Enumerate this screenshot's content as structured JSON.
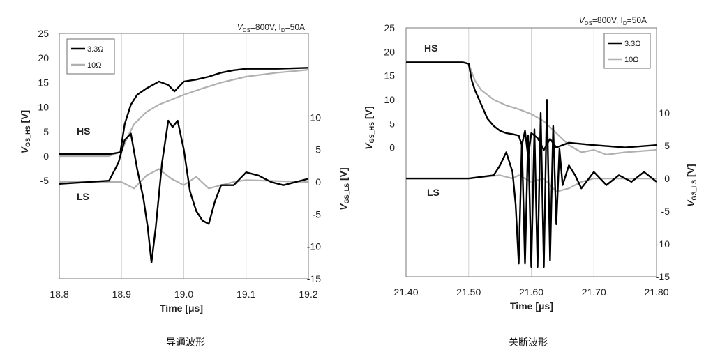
{
  "chart_data": [
    {
      "type": "line",
      "caption": "导通波形",
      "condition": {
        "v_sub": "DS",
        "v_val": "=800V,",
        "i_sub": "D",
        "i_val": "=50A"
      },
      "xlabel": "Time [μs]",
      "xlim": [
        18.8,
        19.2
      ],
      "x_ticks": [
        "18.8",
        "18.9",
        "19.0",
        "19.1",
        "19.2"
      ],
      "ylabel_left": {
        "main": "V",
        "sub": "GS_HS",
        "unit": "[V]"
      },
      "ylabel_right": {
        "main": "V",
        "sub": "GS_LS",
        "unit": "[V]"
      },
      "left_axis": {
        "lim": [
          -25,
          25
        ],
        "ticks": [
          "25",
          "20",
          "15",
          "10",
          "5",
          "0",
          "-5"
        ]
      },
      "right_axis": {
        "lim": [
          -15,
          23
        ],
        "ticks": [
          "10",
          "5",
          "0",
          "-5",
          "-10",
          "-15"
        ]
      },
      "group_labels": {
        "hs": "HS",
        "ls": "LS"
      },
      "legend": [
        "3.3Ω",
        "10Ω"
      ],
      "legend_position": "top-left",
      "grid": "vertical",
      "series": [
        {
          "name": "3.3Ω",
          "group": "HS",
          "color": "#000000",
          "x": [
            18.8,
            18.88,
            18.898,
            18.905,
            18.915,
            18.925,
            18.94,
            18.95,
            18.96,
            18.975,
            18.985,
            19.0,
            19.02,
            19.04,
            19.06,
            19.08,
            19.1,
            19.12,
            19.15,
            19.2
          ],
          "y": [
            0.4,
            0.4,
            0.8,
            6.5,
            10.5,
            12.5,
            13.8,
            14.5,
            15.2,
            14.5,
            13.2,
            15.2,
            15.6,
            16.2,
            17.0,
            17.5,
            17.8,
            17.8,
            17.8,
            18.0
          ]
        },
        {
          "name": "10Ω",
          "group": "HS",
          "color": "#b0b0b0",
          "x": [
            18.8,
            18.88,
            18.9,
            18.91,
            18.92,
            18.94,
            18.96,
            18.98,
            19.0,
            19.03,
            19.06,
            19.1,
            19.15,
            19.2
          ],
          "y": [
            0.0,
            0.0,
            1.0,
            4.0,
            6.5,
            9.0,
            10.5,
            11.5,
            12.5,
            13.8,
            15.0,
            16.2,
            17.0,
            17.6
          ]
        },
        {
          "name": "3.3Ω",
          "group": "LS",
          "color": "#000000",
          "x": [
            18.8,
            18.88,
            18.895,
            18.905,
            18.915,
            18.925,
            18.935,
            18.942,
            18.948,
            18.955,
            18.965,
            18.975,
            18.982,
            18.99,
            19.0,
            19.01,
            19.02,
            19.03,
            19.04,
            19.05,
            19.06,
            19.08,
            19.1,
            19.12,
            19.14,
            19.16,
            19.2
          ],
          "y": [
            -0.3,
            0.2,
            3.0,
            6.5,
            7.5,
            2.0,
            -2.5,
            -7.0,
            -12.5,
            -7.0,
            3.0,
            9.5,
            8.5,
            9.5,
            5.0,
            -1.5,
            -4.5,
            -6.0,
            -6.5,
            -3.0,
            -0.5,
            -0.5,
            1.5,
            1.0,
            0.0,
            -0.5,
            0.5
          ]
        },
        {
          "name": "10Ω",
          "group": "LS",
          "color": "#b0b0b0",
          "x": [
            18.8,
            18.9,
            18.92,
            18.94,
            18.96,
            18.98,
            19.0,
            19.02,
            19.04,
            19.06,
            19.08,
            19.1,
            19.2
          ],
          "y": [
            0.0,
            0.0,
            -1.0,
            1.0,
            2.0,
            0.5,
            -0.5,
            0.8,
            -1.0,
            -0.5,
            0.0,
            0.3,
            0.0
          ]
        }
      ]
    },
    {
      "type": "line",
      "caption": "关断波形",
      "condition": {
        "v_sub": "DS",
        "v_val": "=800V,",
        "i_sub": "D",
        "i_val": "=50A"
      },
      "xlabel": "Time [μs]",
      "xlim": [
        21.4,
        21.8
      ],
      "x_ticks": [
        "21.40",
        "21.50",
        "21.60",
        "21.70",
        "21.80"
      ],
      "ylabel_left": {
        "main": "V",
        "sub": "GS_HS",
        "unit": "[V]"
      },
      "ylabel_right": {
        "main": "V",
        "sub": "GS_LS",
        "unit": "[V]"
      },
      "left_axis": {
        "lim": [
          -27,
          25
        ],
        "ticks": [
          "25",
          "20",
          "15",
          "10",
          "5",
          "0"
        ]
      },
      "right_axis": {
        "lim": [
          -15,
          23
        ],
        "ticks": [
          "10",
          "5",
          "0",
          "-5",
          "-10",
          "-15"
        ]
      },
      "group_labels": {
        "hs": "HS",
        "ls": "LS"
      },
      "legend": [
        "3.3Ω",
        "10Ω"
      ],
      "legend_position": "top-right",
      "grid": "vertical",
      "series": [
        {
          "name": "3.3Ω",
          "group": "HS",
          "color": "#000000",
          "x": [
            21.4,
            21.49,
            21.5,
            21.505,
            21.51,
            21.52,
            21.53,
            21.54,
            21.55,
            21.56,
            21.57,
            21.58,
            21.585,
            21.59,
            21.595,
            21.6,
            21.61,
            21.62,
            21.63,
            21.64,
            21.66,
            21.7,
            21.75,
            21.8
          ],
          "y": [
            17.8,
            17.8,
            17.5,
            14.0,
            12.0,
            9.0,
            6.0,
            4.5,
            3.5,
            3.0,
            2.8,
            2.5,
            0.5,
            3.5,
            -2.0,
            3.0,
            2.0,
            -0.5,
            1.8,
            0.0,
            1.0,
            0.5,
            0.0,
            0.5
          ]
        },
        {
          "name": "10Ω",
          "group": "HS",
          "color": "#b0b0b0",
          "x": [
            21.4,
            21.49,
            21.5,
            21.51,
            21.52,
            21.54,
            21.56,
            21.58,
            21.6,
            21.62,
            21.64,
            21.66,
            21.68,
            21.7,
            21.72,
            21.75,
            21.8
          ],
          "y": [
            18.0,
            18.0,
            17.5,
            14.0,
            12.0,
            10.0,
            8.8,
            8.0,
            7.0,
            5.5,
            3.0,
            0.5,
            -1.0,
            -0.5,
            -1.5,
            -1.0,
            -0.5
          ]
        },
        {
          "name": "3.3Ω",
          "group": "LS",
          "color": "#000000",
          "x": [
            21.4,
            21.5,
            21.54,
            21.55,
            21.56,
            21.57,
            21.575,
            21.58,
            21.585,
            21.59,
            21.595,
            21.6,
            21.605,
            21.61,
            21.615,
            21.62,
            21.625,
            21.63,
            21.635,
            21.64,
            21.645,
            21.65,
            21.66,
            21.67,
            21.68,
            21.7,
            21.72,
            21.74,
            21.76,
            21.78,
            21.8
          ],
          "y": [
            0.0,
            0.0,
            0.5,
            2.0,
            4.0,
            1.0,
            -4.0,
            -13.0,
            5.5,
            -13.0,
            6.5,
            -13.5,
            7.5,
            -13.5,
            10.0,
            -13.5,
            12.0,
            -12.5,
            8.0,
            -7.0,
            4.5,
            -1.0,
            2.0,
            0.5,
            -1.5,
            1.0,
            -1.0,
            0.5,
            -0.5,
            1.0,
            -0.5
          ]
        },
        {
          "name": "10Ω",
          "group": "LS",
          "color": "#b0b0b0",
          "x": [
            21.4,
            21.5,
            21.55,
            21.57,
            21.58,
            21.6,
            21.62,
            21.64,
            21.66,
            21.68,
            21.7,
            21.8
          ],
          "y": [
            0.0,
            0.0,
            0.5,
            0.0,
            0.5,
            -0.5,
            0.0,
            -2.0,
            -1.5,
            -0.5,
            0.0,
            0.0
          ]
        }
      ]
    }
  ]
}
